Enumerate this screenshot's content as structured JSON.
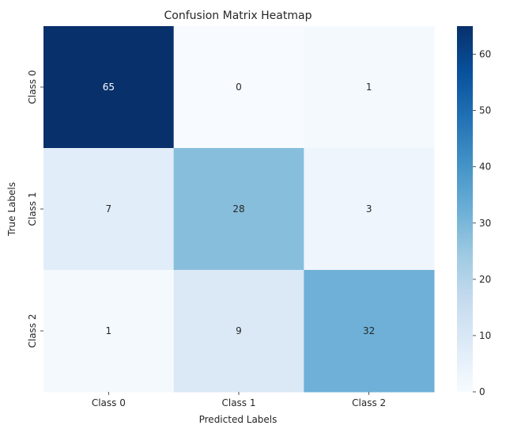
{
  "chart_data": {
    "type": "heatmap",
    "title": "Confusion Matrix Heatmap",
    "xlabel": "Predicted Labels",
    "ylabel": "True Labels",
    "x_categories": [
      "Class 0",
      "Class 1",
      "Class 2"
    ],
    "y_categories": [
      "Class 0",
      "Class 1",
      "Class 2"
    ],
    "values": [
      [
        65,
        0,
        1
      ],
      [
        7,
        28,
        3
      ],
      [
        1,
        9,
        32
      ]
    ],
    "annotated": true,
    "colormap": "Blues",
    "colorbar": {
      "range": [
        0,
        65
      ],
      "ticks": [
        0,
        10,
        20,
        30,
        40,
        50,
        60
      ]
    },
    "colors": {
      "low": "#f7fbff",
      "high": "#08306b",
      "text_dark": "#262626",
      "text_light": "#ffffff"
    }
  }
}
